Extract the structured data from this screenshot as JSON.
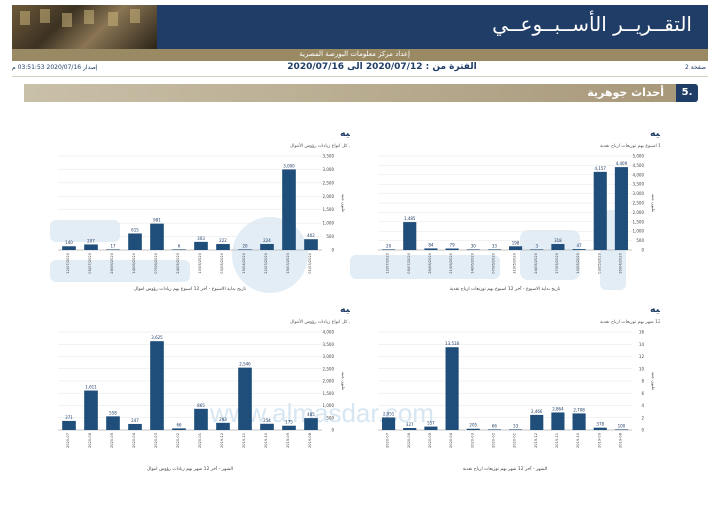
{
  "header": {
    "title": "التقــريــر الأســبــوعــي",
    "source": "إعداد مركز معلومات البورصة المصرية"
  },
  "meta": {
    "page": "صفحة 2",
    "period": "الفترة من : 2020/07/12 الى 2020/07/16",
    "issue": "إصدار 2020/07/16 03:51:53 م"
  },
  "section": {
    "number": "5.",
    "title": "أحداث جوهرية"
  },
  "watermark": {
    "url": "www.almasdar.com"
  },
  "colors": {
    "navy": "#1f3d66",
    "bar": "#1f4e7a",
    "gold": "#9a8a64"
  },
  "chart_data": [
    {
      "id": "weekly-dividends",
      "type": "bar",
      "title": "توزيعات الأرباح النقدية اسبوعيا بالمليون جنيه",
      "subtitle": "آخر 12 اسبوع بهم توزيعات ارباح نقدية",
      "xlabel": "تاريخ بداية الاسبوع - آخر 12 اسبوع بهم توزيعات ارباح نقدية",
      "ylabel": "مليون جنيه",
      "ylim": [
        0,
        5000
      ],
      "yticks": [
        "5,000",
        "4,500",
        "4,000",
        "3,500",
        "3,000",
        "2,500",
        "2,000",
        "1,500",
        "1,000",
        "500",
        "0"
      ],
      "categories": [
        "12/07/2020",
        "05/07/2020",
        "28/06/2020",
        "21/06/2020",
        "14/06/2020",
        "07/06/2020",
        "31/05/2020",
        "24/05/2020",
        "17/05/2020",
        "10/05/2020",
        "03/05/2020",
        "26/04/2020"
      ],
      "values": [
        20,
        1485,
        84,
        79,
        30,
        33,
        198,
        3,
        318,
        47,
        4157,
        4409
      ],
      "value_labels": [
        "20",
        "1,485",
        "84",
        "79",
        "30",
        "33",
        "198",
        "3",
        "318",
        "47",
        "4,157",
        "4,409"
      ]
    },
    {
      "id": "weekly-capital",
      "type": "bar",
      "title": "زيادات رؤوس الأموال اسبوعيا بالمليون جنيه",
      "subtitle": "تشمل كل انواع زيادات رؤوس الأموال",
      "xlabel": "تاريخ بداية الاسبوع - آخر 12 اسبوع بهم زيادات رؤوس اموال",
      "ylabel": "مليون جنيه",
      "ylim": [
        0,
        3500
      ],
      "yticks": [
        "3,500",
        "3,000",
        "2,500",
        "2,000",
        "1,500",
        "1,000",
        "500",
        "0"
      ],
      "categories": [
        "12/07/2020",
        "05/07/2020",
        "28/06/2020",
        "14/06/2020",
        "07/06/2020",
        "24/05/2020",
        "10/05/2020",
        "03/05/2020",
        "19/04/2020",
        "22/03/2020",
        "15/03/2020",
        "01/03/2020"
      ],
      "values": [
        140,
        207,
        17,
        615,
        981,
        6,
        303,
        222,
        20,
        224,
        3000,
        402
      ],
      "value_labels": [
        "140",
        "207",
        "17",
        "615",
        "981",
        "6",
        "303",
        "222",
        "20",
        "224",
        "3,000",
        "402"
      ]
    },
    {
      "id": "monthly-dividends",
      "type": "bar",
      "title": "توزيعات الأرباح النقدية شهريا بالمليون جنيه",
      "subtitle": "آخر 12 شهر بهم توزيعات ارباح نقدية",
      "xlabel": "الشهر - آخر 12 شهر بهم توزيعات ارباح نقدية",
      "ylabel": "مليون جنيه",
      "ylim": [
        0,
        16000
      ],
      "yticks": [
        "16",
        "14",
        "12",
        "10",
        "8",
        "6",
        "4",
        "2",
        "0"
      ],
      "categories": [
        "2020-07",
        "2020-06",
        "2020-05",
        "2020-04",
        "2020-03",
        "2020-02",
        "2020-01",
        "2019-12",
        "2019-11",
        "2019-10",
        "2019-09",
        "2019-08"
      ],
      "values": [
        2051,
        327,
        557,
        13518,
        205,
        66,
        33,
        2466,
        2864,
        2708,
        378,
        100
      ],
      "value_labels": [
        "2,051",
        "327",
        "557",
        "13,518",
        "205",
        "66",
        "33",
        "2,466",
        "2,864",
        "2,708",
        "378",
        "100"
      ]
    },
    {
      "id": "monthly-capital",
      "type": "bar",
      "title": "زيادات رؤوس الأموال شهريا بالمليون جنيه",
      "subtitle": "تشمل كل انواع زيادات رؤوس الأموال",
      "xlabel": "الشهر - آخر 12 شهر بهم زيادات رؤوس اموال",
      "ylabel": "مليون جنيه",
      "ylim": [
        0,
        4000
      ],
      "yticks": [
        "4,000",
        "3,500",
        "3,000",
        "2,500",
        "2,000",
        "1,500",
        "1,000",
        "500",
        "0"
      ],
      "categories": [
        "2020-07",
        "2020-06",
        "2020-05",
        "2020-04",
        "2020-03",
        "2020-02",
        "2020-01",
        "2019-12",
        "2019-11",
        "2019-10",
        "2019-09",
        "2019-08"
      ],
      "values": [
        371,
        1611,
        558,
        247,
        3625,
        66,
        865,
        293,
        2546,
        254,
        175,
        485
      ],
      "value_labels": [
        "371",
        "1,611",
        "558",
        "247",
        "3,625",
        "66",
        "865",
        "293",
        "2,546",
        "254",
        "175",
        "485"
      ]
    }
  ]
}
